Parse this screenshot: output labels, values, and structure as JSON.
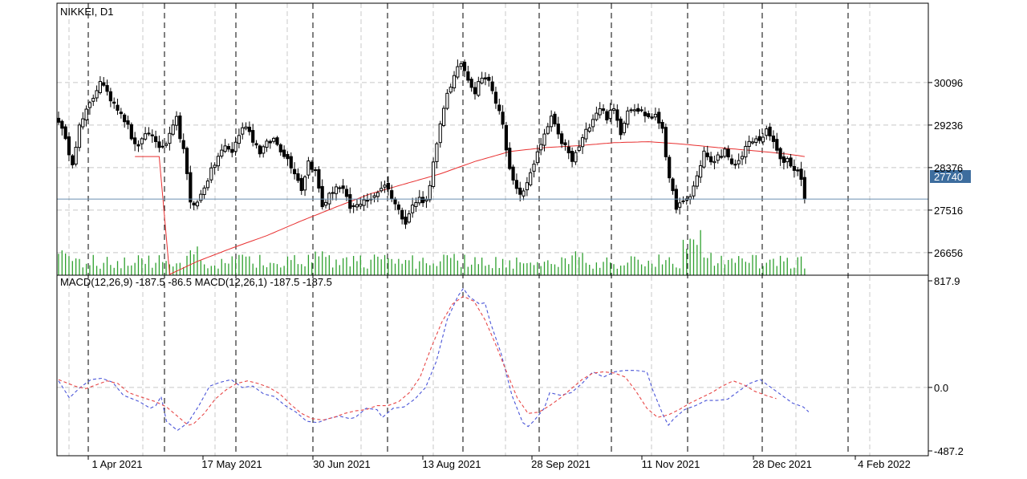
{
  "chart_title": "NIKKEI, D1",
  "macd_label": "MACD(12,26,9) -187.5 -86.5 MACD(12,26,1) -187.5 -187.5",
  "price_panel": {
    "y_ticks": [
      "30096",
      "29236",
      "28376",
      "27516",
      "26656"
    ],
    "current_price_label": "27740",
    "current_price": 27740
  },
  "macd_panel": {
    "y_ticks": [
      "817.9",
      "0.0",
      "-487.2"
    ]
  },
  "x_labels": [
    "1 Apr 2021",
    "17 May 2021",
    "30 Jun 2021",
    "13 Aug 2021",
    "28 Sep 2021",
    "11 Nov 2021",
    "28 Dec 2021",
    "4 Feb 2022"
  ],
  "colors": {
    "bull": "#000000",
    "bear": "#000000",
    "ma": "#e83030",
    "volume": "#2ea02e",
    "macd_main": "#4a55d8",
    "macd_signal": "#e84848",
    "price_line": "#6a8fb0",
    "price_tag": "#3d6d9e",
    "grid": "#c8c8c8",
    "frame": "#000000"
  },
  "chart_data": [
    {
      "type": "candlestick",
      "title": "NIKKEI, D1",
      "ylim": [
        26200,
        31700
      ],
      "close_anchors": [
        [
          0,
          29350
        ],
        [
          2,
          28900
        ],
        [
          4,
          28500
        ],
        [
          6,
          29200
        ],
        [
          8,
          29500
        ],
        [
          10,
          29800
        ],
        [
          12,
          30150
        ],
        [
          14,
          29850
        ],
        [
          16,
          29700
        ],
        [
          18,
          29500
        ],
        [
          20,
          29200
        ],
        [
          22,
          28800
        ],
        [
          24,
          28900
        ],
        [
          26,
          29100
        ],
        [
          28,
          28900
        ],
        [
          30,
          28750
        ],
        [
          32,
          29000
        ],
        [
          34,
          29350
        ],
        [
          36,
          28700
        ],
        [
          38,
          27700
        ],
        [
          40,
          27650
        ],
        [
          42,
          28000
        ],
        [
          44,
          28300
        ],
        [
          46,
          28600
        ],
        [
          48,
          28800
        ],
        [
          50,
          28700
        ],
        [
          52,
          29050
        ],
        [
          54,
          29250
        ],
        [
          56,
          28950
        ],
        [
          58,
          28700
        ],
        [
          60,
          28850
        ],
        [
          62,
          28950
        ],
        [
          64,
          28750
        ],
        [
          66,
          28550
        ],
        [
          68,
          28300
        ],
        [
          70,
          27950
        ],
        [
          72,
          28500
        ],
        [
          74,
          28300
        ],
        [
          76,
          27600
        ],
        [
          78,
          27800
        ],
        [
          80,
          28000
        ],
        [
          82,
          27900
        ],
        [
          84,
          27550
        ],
        [
          86,
          27600
        ],
        [
          88,
          27750
        ],
        [
          90,
          27700
        ],
        [
          92,
          27900
        ],
        [
          94,
          28050
        ],
        [
          96,
          27800
        ],
        [
          98,
          27500
        ],
        [
          100,
          27300
        ],
        [
          102,
          27600
        ],
        [
          104,
          27750
        ],
        [
          106,
          27700
        ],
        [
          108,
          28450
        ],
        [
          110,
          29200
        ],
        [
          112,
          29900
        ],
        [
          114,
          30200
        ],
        [
          116,
          30500
        ],
        [
          118,
          30200
        ],
        [
          120,
          29900
        ],
        [
          122,
          30250
        ],
        [
          124,
          30100
        ],
        [
          126,
          29700
        ],
        [
          128,
          29300
        ],
        [
          130,
          28300
        ],
        [
          132,
          27900
        ],
        [
          134,
          27850
        ],
        [
          136,
          28300
        ],
        [
          138,
          28650
        ],
        [
          140,
          29000
        ],
        [
          142,
          29400
        ],
        [
          144,
          29000
        ],
        [
          146,
          28800
        ],
        [
          148,
          28500
        ],
        [
          150,
          28800
        ],
        [
          152,
          29100
        ],
        [
          154,
          29400
        ],
        [
          156,
          29600
        ],
        [
          158,
          29400
        ],
        [
          160,
          29550
        ],
        [
          162,
          29100
        ],
        [
          164,
          29550
        ],
        [
          166,
          29600
        ],
        [
          168,
          29500
        ],
        [
          170,
          29400
        ],
        [
          172,
          29400
        ],
        [
          174,
          29200
        ],
        [
          176,
          28100
        ],
        [
          178,
          27600
        ],
        [
          180,
          27650
        ],
        [
          182,
          27800
        ],
        [
          184,
          28200
        ],
        [
          186,
          28700
        ],
        [
          188,
          28450
        ],
        [
          190,
          28600
        ],
        [
          192,
          28700
        ],
        [
          194,
          28400
        ],
        [
          196,
          28500
        ],
        [
          198,
          28800
        ],
        [
          200,
          28900
        ],
        [
          202,
          28950
        ],
        [
          204,
          29100
        ],
        [
          206,
          28900
        ],
        [
          208,
          28500
        ],
        [
          210,
          28550
        ],
        [
          212,
          28350
        ],
        [
          214,
          28200
        ],
        [
          215,
          27740
        ]
      ],
      "ma_anchors": [
        [
          30,
          26150
        ],
        [
          40,
          26480
        ],
        [
          50,
          26750
        ],
        [
          60,
          27000
        ],
        [
          70,
          27300
        ],
        [
          80,
          27580
        ],
        [
          90,
          27850
        ],
        [
          100,
          28050
        ],
        [
          110,
          28250
        ],
        [
          120,
          28500
        ],
        [
          130,
          28700
        ],
        [
          140,
          28780
        ],
        [
          150,
          28820
        ],
        [
          160,
          28880
        ],
        [
          170,
          28900
        ],
        [
          180,
          28850
        ],
        [
          190,
          28780
        ],
        [
          200,
          28720
        ],
        [
          210,
          28650
        ],
        [
          215,
          28600
        ]
      ],
      "price_line": 27740
    },
    {
      "type": "bar",
      "name": "volume",
      "values_note": ""
    },
    {
      "type": "line",
      "title": "MACD(12,26,9) -187.5 -86.5 MACD(12,26,1) -187.5 -187.5",
      "ylim": [
        -487.2,
        817.9
      ],
      "series": [
        {
          "name": "MACD(12,26,1)",
          "points": [
            [
              0,
              50
            ],
            [
              4,
              -80
            ],
            [
              8,
              0
            ],
            [
              12,
              60
            ],
            [
              16,
              70
            ],
            [
              20,
              40
            ],
            [
              24,
              -60
            ],
            [
              30,
              -110
            ],
            [
              34,
              -160
            ],
            [
              36,
              -140
            ],
            [
              38,
              -70
            ],
            [
              40,
              -260
            ],
            [
              44,
              -330
            ],
            [
              48,
              -270
            ],
            [
              52,
              -140
            ],
            [
              56,
              10
            ],
            [
              60,
              40
            ],
            [
              64,
              60
            ],
            [
              68,
              0
            ],
            [
              72,
              10
            ],
            [
              76,
              -50
            ],
            [
              80,
              -70
            ],
            [
              84,
              -140
            ],
            [
              88,
              -190
            ],
            [
              92,
              -260
            ],
            [
              96,
              -270
            ],
            [
              100,
              -240
            ],
            [
              104,
              -220
            ],
            [
              108,
              -240
            ],
            [
              110,
              -230
            ],
            [
              114,
              -160
            ],
            [
              118,
              -170
            ],
            [
              120,
              -230
            ],
            [
              124,
              -160
            ],
            [
              128,
              -150
            ],
            [
              132,
              -90
            ],
            [
              136,
              0
            ],
            [
              140,
              200
            ],
            [
              144,
              520
            ],
            [
              148,
              700
            ],
            [
              150,
              760
            ],
            [
              152,
              700
            ],
            [
              156,
              640
            ],
            [
              158,
              650
            ],
            [
              160,
              500
            ],
            [
              164,
              260
            ],
            [
              168,
              -60
            ],
            [
              172,
              -270
            ],
            [
              174,
              -300
            ],
            [
              176,
              -260
            ],
            [
              180,
              -160
            ],
            [
              182,
              -40
            ],
            [
              186,
              -60
            ],
            [
              190,
              -40
            ],
            [
              194,
              30
            ],
            [
              198,
              120
            ],
            [
              202,
              80
            ],
            [
              206,
              120
            ],
            [
              210,
              130
            ],
            [
              214,
              130
            ],
            [
              218,
              120
            ],
            [
              220,
              -10
            ],
            [
              224,
              -210
            ],
            [
              226,
              -290
            ],
            [
              228,
              -240
            ],
            [
              232,
              -170
            ],
            [
              236,
              -140
            ],
            [
              240,
              -100
            ],
            [
              244,
              -100
            ],
            [
              248,
              -90
            ],
            [
              252,
              -30
            ],
            [
              256,
              30
            ],
            [
              260,
              60
            ],
            [
              264,
              0
            ],
            [
              268,
              -60
            ],
            [
              272,
              -120
            ],
            [
              276,
              -150
            ],
            [
              278,
              -187.5
            ]
          ]
        },
        {
          "name": "MACD(12,26,9)",
          "points": [
            [
              0,
              60
            ],
            [
              6,
              10
            ],
            [
              10,
              -10
            ],
            [
              14,
              20
            ],
            [
              18,
              50
            ],
            [
              22,
              30
            ],
            [
              26,
              -40
            ],
            [
              30,
              -70
            ],
            [
              36,
              -110
            ],
            [
              40,
              -150
            ],
            [
              44,
              -220
            ],
            [
              48,
              -290
            ],
            [
              50,
              -280
            ],
            [
              54,
              -200
            ],
            [
              58,
              -90
            ],
            [
              62,
              -20
            ],
            [
              66,
              30
            ],
            [
              70,
              50
            ],
            [
              74,
              30
            ],
            [
              78,
              0
            ],
            [
              82,
              -50
            ],
            [
              86,
              -130
            ],
            [
              90,
              -200
            ],
            [
              94,
              -240
            ],
            [
              98,
              -250
            ],
            [
              102,
              -230
            ],
            [
              106,
              -200
            ],
            [
              110,
              -180
            ],
            [
              114,
              -170
            ],
            [
              118,
              -140
            ],
            [
              122,
              -140
            ],
            [
              126,
              -110
            ],
            [
              130,
              -40
            ],
            [
              134,
              80
            ],
            [
              138,
              300
            ],
            [
              142,
              500
            ],
            [
              146,
              640
            ],
            [
              150,
              700
            ],
            [
              154,
              660
            ],
            [
              158,
              520
            ],
            [
              162,
              330
            ],
            [
              166,
              120
            ],
            [
              170,
              -80
            ],
            [
              174,
              -200
            ],
            [
              178,
              -190
            ],
            [
              182,
              -140
            ],
            [
              186,
              -80
            ],
            [
              190,
              -10
            ],
            [
              194,
              60
            ],
            [
              198,
              110
            ],
            [
              202,
              120
            ],
            [
              206,
              110
            ],
            [
              210,
              80
            ],
            [
              214,
              -30
            ],
            [
              218,
              -160
            ],
            [
              222,
              -230
            ],
            [
              226,
              -210
            ],
            [
              230,
              -170
            ],
            [
              234,
              -120
            ],
            [
              238,
              -80
            ],
            [
              242,
              -40
            ],
            [
              246,
              10
            ],
            [
              250,
              50
            ],
            [
              254,
              20
            ],
            [
              258,
              -30
            ],
            [
              262,
              -60
            ],
            [
              266,
              -86.5
            ]
          ]
        }
      ]
    }
  ]
}
